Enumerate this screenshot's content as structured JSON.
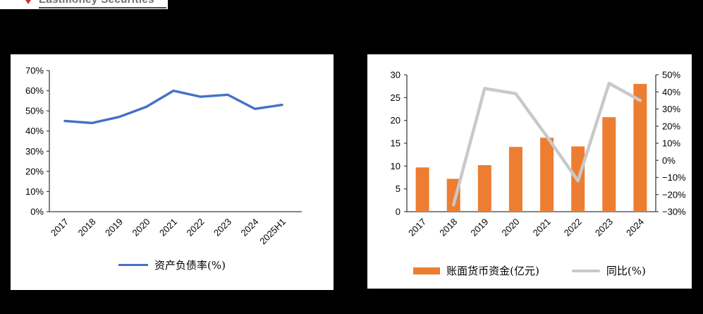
{
  "logo": {
    "text": "Eastmoney Securities"
  },
  "colors": {
    "page_bg": "#000000",
    "panel_bg": "#FFFFFF",
    "axis": "#3f3f3f",
    "label": "#000000",
    "line_blue": "#4472C4",
    "bar_orange": "#ED7D31",
    "line_gray": "#C9C9C9",
    "logo_red": "#C8372D"
  },
  "chart_data": [
    {
      "type": "line",
      "title": "",
      "categories": [
        "2017",
        "2018",
        "2019",
        "2020",
        "2021",
        "2022",
        "2023",
        "2024",
        "2025H1"
      ],
      "series": [
        {
          "name": "资产负债率(%)",
          "color": "#4472C4",
          "values": [
            45,
            44,
            47,
            52,
            60,
            57,
            58,
            51,
            53
          ]
        }
      ],
      "ylim": [
        0,
        70
      ],
      "ytick_step": 10,
      "ytick_labels": [
        "0%",
        "10%",
        "20%",
        "30%",
        "40%",
        "50%",
        "60%",
        "70%"
      ],
      "grid": false,
      "legend_position": "bottom"
    },
    {
      "type": "bar+line",
      "title": "",
      "categories": [
        "2017",
        "2018",
        "2019",
        "2020",
        "2021",
        "2022",
        "2023",
        "2024"
      ],
      "series": [
        {
          "name": "账面货币资金(亿元)",
          "type": "bar",
          "axis": "left",
          "color": "#ED7D31",
          "values": [
            9.7,
            7.2,
            10.2,
            14.2,
            16.2,
            14.3,
            20.7,
            28.0
          ]
        },
        {
          "name": "同比(%)",
          "type": "line",
          "axis": "right",
          "color": "#C9C9C9",
          "values": [
            null,
            -26,
            42,
            39,
            14,
            -12,
            45,
            35
          ]
        }
      ],
      "left_ylim": [
        0,
        30
      ],
      "left_ytick_step": 5,
      "left_ytick_labels": [
        "0",
        "5",
        "10",
        "15",
        "20",
        "25",
        "30"
      ],
      "right_ylim": [
        -30,
        50
      ],
      "right_ytick_step": 10,
      "right_ytick_labels": [
        "-30%",
        "-20%",
        "-10%",
        "0%",
        "10%",
        "20%",
        "30%",
        "40%",
        "50%"
      ],
      "grid": false,
      "legend_position": "bottom"
    }
  ]
}
